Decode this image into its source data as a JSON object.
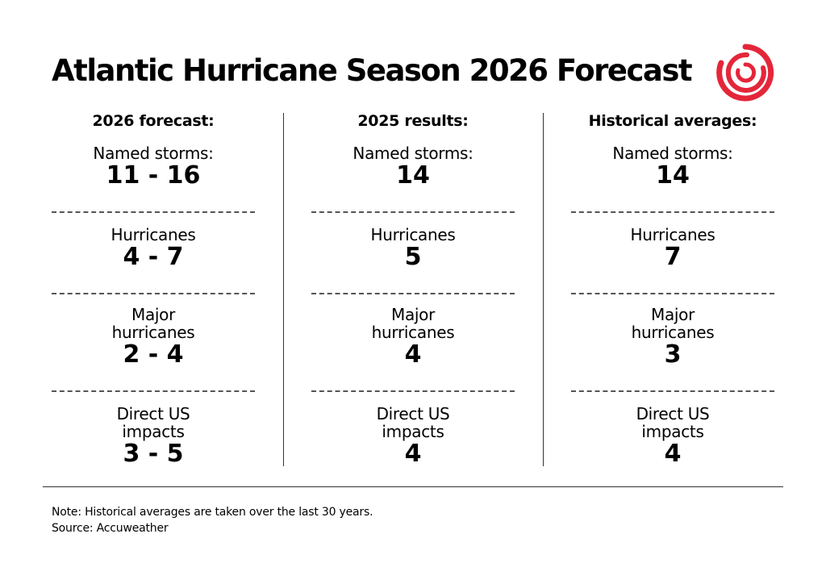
{
  "title": "Atlantic Hurricane Season 2026 Forecast",
  "logo_color": "#e4263a",
  "chart_data": {
    "type": "table",
    "columns": [
      {
        "header": "2026 forecast:",
        "named_storms_label": "Named storms:",
        "named_storms": "11 - 16",
        "hurricanes_label": "Hurricanes",
        "hurricanes": "4 - 7",
        "major_label_1": "Major",
        "major_label_2": "hurricanes",
        "major_hurricanes": "2 - 4",
        "direct_label_1": "Direct US",
        "direct_label_2": "impacts",
        "direct_us_impacts": "3 - 5"
      },
      {
        "header": "2025 results:",
        "named_storms_label": "Named storms:",
        "named_storms": "14",
        "hurricanes_label": "Hurricanes",
        "hurricanes": "5",
        "major_label_1": "Major",
        "major_label_2": "hurricanes",
        "major_hurricanes": "4",
        "direct_label_1": "Direct US",
        "direct_label_2": "impacts",
        "direct_us_impacts": "4"
      },
      {
        "header": "Historical averages:",
        "named_storms_label": "Named storms:",
        "named_storms": "14",
        "hurricanes_label": "Hurricanes",
        "hurricanes": "7",
        "major_label_1": "Major",
        "major_label_2": "hurricanes",
        "major_hurricanes": "3",
        "direct_label_1": "Direct US",
        "direct_label_2": "impacts",
        "direct_us_impacts": "4"
      }
    ]
  },
  "footer": {
    "note": "Note: Historical averages are taken over the last 30 years.",
    "source": "Source: Accuweather"
  }
}
